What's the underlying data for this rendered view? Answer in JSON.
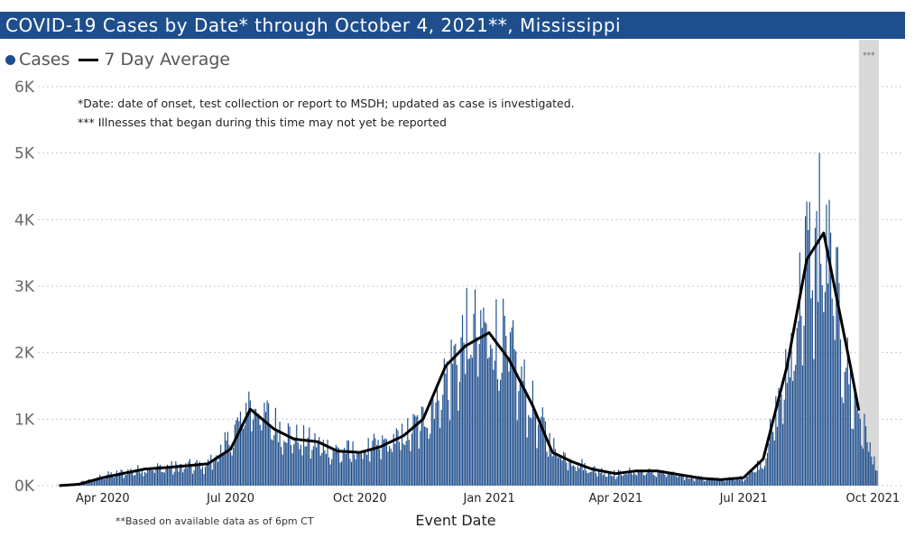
{
  "title": "COVID-19 Cases by Date* through October 4, 2021**, Mississippi",
  "legend": {
    "cases_label": "Cases",
    "avg_label": "7 Day Average"
  },
  "notes": [
    "*Date: date of onset, test collection or report to MSDH; updated as case is investigated.",
    "*** Illnesses that began during this time may not yet be reported"
  ],
  "footnote": "**Based on available data as of 6pm CT",
  "colors": {
    "title_bar": "#1f4e8c",
    "bars": "#1f4e8c",
    "average_line": "#000000",
    "shade": "#d9d9d9"
  },
  "chart_data": {
    "type": "bar",
    "title": "COVID-19 Cases by Date* through October 4, 2021**, Mississippi",
    "xlabel": "Event Date",
    "ylabel": "",
    "x_range": [
      "2020-02-29",
      "2021-10-04"
    ],
    "ylim": [
      0,
      6000
    ],
    "yticks": [
      0,
      1000,
      2000,
      3000,
      4000,
      5000,
      6000
    ],
    "ytick_labels": [
      "0K",
      "1K",
      "2K",
      "3K",
      "4K",
      "5K",
      "6K"
    ],
    "xticks": [
      "2020-04-01",
      "2020-07-01",
      "2020-10-01",
      "2021-01-01",
      "2021-04-01",
      "2021-07-01",
      "2021-10-01"
    ],
    "xtick_labels": [
      "Apr 2020",
      "Jul 2020",
      "Oct 2020",
      "Jan 2021",
      "Apr 2021",
      "Jul 2021",
      "Oct 2021"
    ],
    "grid": true,
    "legend_position": "top-left",
    "shaded_region": {
      "start": "2021-09-21",
      "end": "2021-10-04",
      "label": "***"
    },
    "series": [
      {
        "name": "Cases",
        "type": "bar",
        "anchor_dates": [
          "2020-03-01",
          "2020-03-15",
          "2020-04-01",
          "2020-04-15",
          "2020-05-01",
          "2020-05-15",
          "2020-06-01",
          "2020-06-15",
          "2020-07-01",
          "2020-07-15",
          "2020-08-01",
          "2020-08-15",
          "2020-09-01",
          "2020-09-15",
          "2020-10-01",
          "2020-10-15",
          "2020-11-01",
          "2020-11-15",
          "2020-12-01",
          "2020-12-15",
          "2021-01-01",
          "2021-01-15",
          "2021-02-01",
          "2021-02-15",
          "2021-03-01",
          "2021-03-15",
          "2021-04-01",
          "2021-04-15",
          "2021-05-01",
          "2021-05-15",
          "2021-06-01",
          "2021-06-15",
          "2021-07-01",
          "2021-07-15",
          "2021-08-01",
          "2021-08-15",
          "2021-09-01",
          "2021-09-15",
          "2021-10-04"
        ],
        "anchor_values": [
          5,
          40,
          150,
          200,
          260,
          280,
          300,
          330,
          700,
          1300,
          950,
          730,
          640,
          530,
          530,
          620,
          750,
          1000,
          1650,
          2250,
          2400,
          2050,
          1200,
          600,
          380,
          250,
          180,
          220,
          200,
          160,
          110,
          90,
          120,
          380,
          1700,
          3500,
          3400,
          1500,
          250
        ],
        "peak_day": "2021-08-24",
        "peak_value": 5000
      },
      {
        "name": "7 Day Average",
        "type": "line",
        "dates": [
          "2020-03-01",
          "2020-03-15",
          "2020-04-01",
          "2020-04-15",
          "2020-05-01",
          "2020-05-15",
          "2020-06-01",
          "2020-06-15",
          "2020-07-01",
          "2020-07-15",
          "2020-08-01",
          "2020-08-15",
          "2020-09-01",
          "2020-09-15",
          "2020-10-01",
          "2020-10-15",
          "2020-11-01",
          "2020-11-15",
          "2020-12-01",
          "2020-12-15",
          "2021-01-01",
          "2021-01-15",
          "2021-02-01",
          "2021-02-15",
          "2021-03-01",
          "2021-03-15",
          "2021-04-01",
          "2021-04-15",
          "2021-05-01",
          "2021-05-15",
          "2021-06-01",
          "2021-06-15",
          "2021-07-01",
          "2021-07-15",
          "2021-08-01",
          "2021-08-15",
          "2021-08-27",
          "2021-09-15",
          "2021-09-21"
        ],
        "values": [
          0,
          20,
          120,
          180,
          250,
          270,
          300,
          330,
          550,
          1150,
          850,
          700,
          660,
          520,
          500,
          580,
          750,
          1000,
          1800,
          2100,
          2300,
          1900,
          1200,
          500,
          360,
          250,
          180,
          220,
          220,
          170,
          110,
          90,
          120,
          400,
          1800,
          3400,
          3800,
          1800,
          1130
        ]
      }
    ]
  }
}
